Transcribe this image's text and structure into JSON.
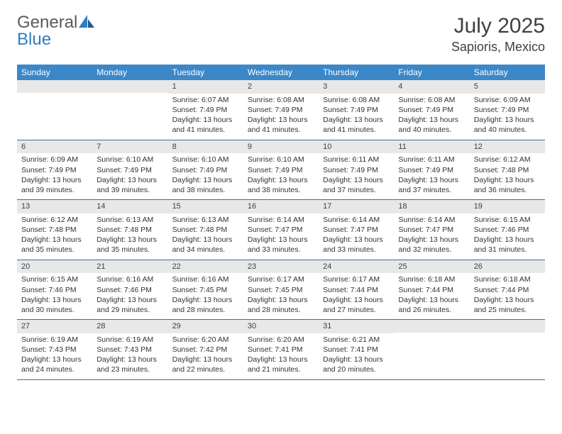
{
  "brand": {
    "name_a": "General",
    "name_b": "Blue"
  },
  "title": "July 2025",
  "location": "Sapioris, Mexico",
  "weekdays": [
    "Sunday",
    "Monday",
    "Tuesday",
    "Wednesday",
    "Thursday",
    "Friday",
    "Saturday"
  ],
  "colors": {
    "header_bg": "#3b87c8",
    "header_text": "#ffffff",
    "daynum_bg": "#e8e8e8",
    "border": "#3b6fa0",
    "logo_gray": "#5a5a5a",
    "logo_blue": "#2f7dc4"
  },
  "weeks": [
    [
      {
        "day": "",
        "sunrise": "",
        "sunset": "",
        "daylight": ""
      },
      {
        "day": "",
        "sunrise": "",
        "sunset": "",
        "daylight": ""
      },
      {
        "day": "1",
        "sunrise": "Sunrise: 6:07 AM",
        "sunset": "Sunset: 7:49 PM",
        "daylight": "Daylight: 13 hours and 41 minutes."
      },
      {
        "day": "2",
        "sunrise": "Sunrise: 6:08 AM",
        "sunset": "Sunset: 7:49 PM",
        "daylight": "Daylight: 13 hours and 41 minutes."
      },
      {
        "day": "3",
        "sunrise": "Sunrise: 6:08 AM",
        "sunset": "Sunset: 7:49 PM",
        "daylight": "Daylight: 13 hours and 41 minutes."
      },
      {
        "day": "4",
        "sunrise": "Sunrise: 6:08 AM",
        "sunset": "Sunset: 7:49 PM",
        "daylight": "Daylight: 13 hours and 40 minutes."
      },
      {
        "day": "5",
        "sunrise": "Sunrise: 6:09 AM",
        "sunset": "Sunset: 7:49 PM",
        "daylight": "Daylight: 13 hours and 40 minutes."
      }
    ],
    [
      {
        "day": "6",
        "sunrise": "Sunrise: 6:09 AM",
        "sunset": "Sunset: 7:49 PM",
        "daylight": "Daylight: 13 hours and 39 minutes."
      },
      {
        "day": "7",
        "sunrise": "Sunrise: 6:10 AM",
        "sunset": "Sunset: 7:49 PM",
        "daylight": "Daylight: 13 hours and 39 minutes."
      },
      {
        "day": "8",
        "sunrise": "Sunrise: 6:10 AM",
        "sunset": "Sunset: 7:49 PM",
        "daylight": "Daylight: 13 hours and 38 minutes."
      },
      {
        "day": "9",
        "sunrise": "Sunrise: 6:10 AM",
        "sunset": "Sunset: 7:49 PM",
        "daylight": "Daylight: 13 hours and 38 minutes."
      },
      {
        "day": "10",
        "sunrise": "Sunrise: 6:11 AM",
        "sunset": "Sunset: 7:49 PM",
        "daylight": "Daylight: 13 hours and 37 minutes."
      },
      {
        "day": "11",
        "sunrise": "Sunrise: 6:11 AM",
        "sunset": "Sunset: 7:49 PM",
        "daylight": "Daylight: 13 hours and 37 minutes."
      },
      {
        "day": "12",
        "sunrise": "Sunrise: 6:12 AM",
        "sunset": "Sunset: 7:48 PM",
        "daylight": "Daylight: 13 hours and 36 minutes."
      }
    ],
    [
      {
        "day": "13",
        "sunrise": "Sunrise: 6:12 AM",
        "sunset": "Sunset: 7:48 PM",
        "daylight": "Daylight: 13 hours and 35 minutes."
      },
      {
        "day": "14",
        "sunrise": "Sunrise: 6:13 AM",
        "sunset": "Sunset: 7:48 PM",
        "daylight": "Daylight: 13 hours and 35 minutes."
      },
      {
        "day": "15",
        "sunrise": "Sunrise: 6:13 AM",
        "sunset": "Sunset: 7:48 PM",
        "daylight": "Daylight: 13 hours and 34 minutes."
      },
      {
        "day": "16",
        "sunrise": "Sunrise: 6:14 AM",
        "sunset": "Sunset: 7:47 PM",
        "daylight": "Daylight: 13 hours and 33 minutes."
      },
      {
        "day": "17",
        "sunrise": "Sunrise: 6:14 AM",
        "sunset": "Sunset: 7:47 PM",
        "daylight": "Daylight: 13 hours and 33 minutes."
      },
      {
        "day": "18",
        "sunrise": "Sunrise: 6:14 AM",
        "sunset": "Sunset: 7:47 PM",
        "daylight": "Daylight: 13 hours and 32 minutes."
      },
      {
        "day": "19",
        "sunrise": "Sunrise: 6:15 AM",
        "sunset": "Sunset: 7:46 PM",
        "daylight": "Daylight: 13 hours and 31 minutes."
      }
    ],
    [
      {
        "day": "20",
        "sunrise": "Sunrise: 6:15 AM",
        "sunset": "Sunset: 7:46 PM",
        "daylight": "Daylight: 13 hours and 30 minutes."
      },
      {
        "day": "21",
        "sunrise": "Sunrise: 6:16 AM",
        "sunset": "Sunset: 7:46 PM",
        "daylight": "Daylight: 13 hours and 29 minutes."
      },
      {
        "day": "22",
        "sunrise": "Sunrise: 6:16 AM",
        "sunset": "Sunset: 7:45 PM",
        "daylight": "Daylight: 13 hours and 28 minutes."
      },
      {
        "day": "23",
        "sunrise": "Sunrise: 6:17 AM",
        "sunset": "Sunset: 7:45 PM",
        "daylight": "Daylight: 13 hours and 28 minutes."
      },
      {
        "day": "24",
        "sunrise": "Sunrise: 6:17 AM",
        "sunset": "Sunset: 7:44 PM",
        "daylight": "Daylight: 13 hours and 27 minutes."
      },
      {
        "day": "25",
        "sunrise": "Sunrise: 6:18 AM",
        "sunset": "Sunset: 7:44 PM",
        "daylight": "Daylight: 13 hours and 26 minutes."
      },
      {
        "day": "26",
        "sunrise": "Sunrise: 6:18 AM",
        "sunset": "Sunset: 7:44 PM",
        "daylight": "Daylight: 13 hours and 25 minutes."
      }
    ],
    [
      {
        "day": "27",
        "sunrise": "Sunrise: 6:19 AM",
        "sunset": "Sunset: 7:43 PM",
        "daylight": "Daylight: 13 hours and 24 minutes."
      },
      {
        "day": "28",
        "sunrise": "Sunrise: 6:19 AM",
        "sunset": "Sunset: 7:43 PM",
        "daylight": "Daylight: 13 hours and 23 minutes."
      },
      {
        "day": "29",
        "sunrise": "Sunrise: 6:20 AM",
        "sunset": "Sunset: 7:42 PM",
        "daylight": "Daylight: 13 hours and 22 minutes."
      },
      {
        "day": "30",
        "sunrise": "Sunrise: 6:20 AM",
        "sunset": "Sunset: 7:41 PM",
        "daylight": "Daylight: 13 hours and 21 minutes."
      },
      {
        "day": "31",
        "sunrise": "Sunrise: 6:21 AM",
        "sunset": "Sunset: 7:41 PM",
        "daylight": "Daylight: 13 hours and 20 minutes."
      },
      {
        "day": "",
        "sunrise": "",
        "sunset": "",
        "daylight": ""
      },
      {
        "day": "",
        "sunrise": "",
        "sunset": "",
        "daylight": ""
      }
    ]
  ]
}
